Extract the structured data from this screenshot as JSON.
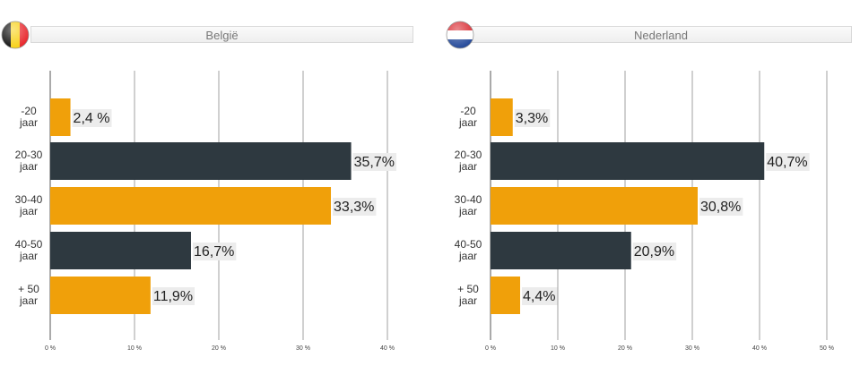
{
  "chart_data": [
    {
      "type": "bar",
      "orientation": "horizontal",
      "title": "België",
      "categories": [
        [
          "-20",
          "jaar"
        ],
        [
          "20-30",
          "jaar"
        ],
        [
          "30-40",
          "jaar"
        ],
        [
          "40-50",
          "jaar"
        ],
        [
          "+ 50",
          "jaar"
        ]
      ],
      "values": [
        2.4,
        35.7,
        33.3,
        16.7,
        11.9
      ],
      "value_labels": [
        "2,4 %",
        "35,7%",
        "33,3%",
        "16,7%",
        "11,9%"
      ],
      "bar_colors": [
        "#f0a00a",
        "#2e3940",
        "#f0a00a",
        "#2e3940",
        "#f0a00a"
      ],
      "xlim": [
        0,
        40
      ],
      "xticks": [
        0,
        10,
        20,
        30,
        40
      ],
      "xtick_labels": [
        "0 %",
        "10 %",
        "20 %",
        "30 %",
        "40 %"
      ],
      "grid": true,
      "flag": "belgium-flag-icon"
    },
    {
      "type": "bar",
      "orientation": "horizontal",
      "title": "Nederland",
      "categories": [
        [
          "-20",
          "jaar"
        ],
        [
          "20-30",
          "jaar"
        ],
        [
          "30-40",
          "jaar"
        ],
        [
          "40-50",
          "jaar"
        ],
        [
          "+ 50",
          "jaar"
        ]
      ],
      "values": [
        3.3,
        40.7,
        30.8,
        20.9,
        4.4
      ],
      "value_labels": [
        "3,3%",
        "40,7%",
        "30,8%",
        "20,9%",
        "4,4%"
      ],
      "bar_colors": [
        "#f0a00a",
        "#2e3940",
        "#f0a00a",
        "#2e3940",
        "#f0a00a"
      ],
      "xlim": [
        0,
        50
      ],
      "xticks": [
        0,
        10,
        20,
        30,
        40,
        50
      ],
      "xtick_labels": [
        "0 %",
        "10 %",
        "20 %",
        "30 %",
        "40 %",
        "50 %"
      ],
      "grid": true,
      "flag": "netherlands-flag-icon"
    }
  ]
}
